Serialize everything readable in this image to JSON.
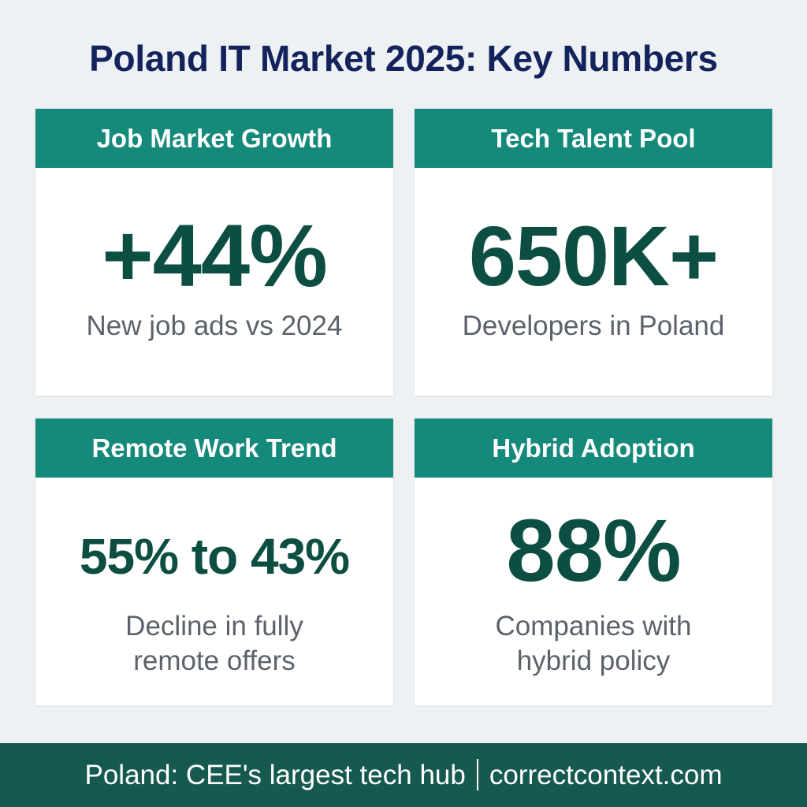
{
  "title": "Poland IT Market 2025: Key Numbers",
  "cards": [
    {
      "heading": "Job Market Growth",
      "value": "+44%",
      "description_lines": [
        "New job ads vs 2024"
      ]
    },
    {
      "heading": "Tech Talent Pool",
      "value": "650K+",
      "description_lines": [
        "Developers in Poland"
      ]
    },
    {
      "heading": "Remote Work Trend",
      "value": "55% to 43%",
      "description_lines": [
        "Decline in fully",
        "remote offers"
      ]
    },
    {
      "heading": "Hybrid Adoption",
      "value": "88%",
      "description_lines": [
        "Companies with",
        "hybrid policy"
      ]
    }
  ],
  "footer": {
    "left_text": "Poland: CEE's largest tech hub",
    "right_text": "correctcontext.com"
  },
  "colors": {
    "background": "#eef1f4",
    "title": "#14235c",
    "card_header": "#15897a",
    "value": "#0c4e42",
    "description": "#5c626a",
    "footer": "#16594f"
  }
}
